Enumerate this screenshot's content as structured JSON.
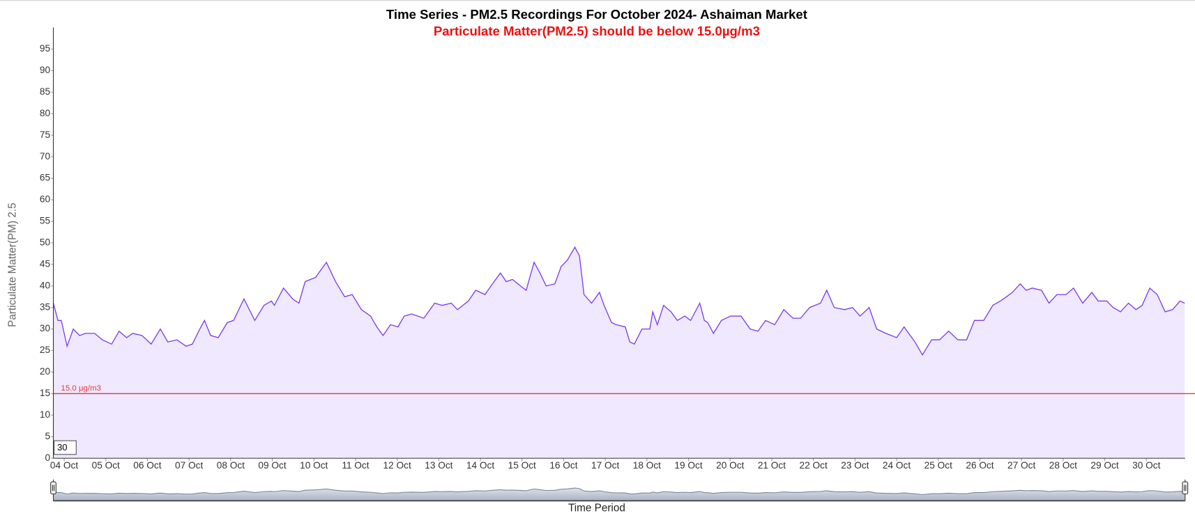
{
  "chart_data": {
    "type": "line",
    "title": "Time Series - PM2.5 Recordings For October 2024- Ashaiman Market",
    "subtitle": "Particulate Matter(PM2.5) should be below 15.0µg/m3",
    "y_label": "Particulate Matter(PM) 2.5",
    "x_label": "Time Period",
    "color": "#7c3aed",
    "fill_color": "#efe8ff",
    "x": [
      3.74,
      3.85,
      3.93,
      4.07,
      4.22,
      4.37,
      4.51,
      4.73,
      4.92,
      5.14,
      5.32,
      5.5,
      5.65,
      5.87,
      6.09,
      6.31,
      6.49,
      6.71,
      6.93,
      7.08,
      7.26,
      7.37,
      7.52,
      7.7,
      7.92,
      8.07,
      8.32,
      8.58,
      8.8,
      8.98,
      9.05,
      9.27,
      9.49,
      9.64,
      9.79,
      10.04,
      10.3,
      10.52,
      10.74,
      10.92,
      11.14,
      11.36,
      11.51,
      11.66,
      11.84,
      12.02,
      12.17,
      12.35,
      12.64,
      12.9,
      13.08,
      13.3,
      13.45,
      13.71,
      13.89,
      14.11,
      14.29,
      14.48,
      14.62,
      14.77,
      15.03,
      15.1,
      15.29,
      15.43,
      15.58,
      15.79,
      15.94,
      16.09,
      16.27,
      16.38,
      16.49,
      16.67,
      16.86,
      16.97,
      17.15,
      17.26,
      17.48,
      17.59,
      17.7,
      17.88,
      18.07,
      18.14,
      18.25,
      18.4,
      18.58,
      18.73,
      18.91,
      19.05,
      19.27,
      19.38,
      19.46,
      19.6,
      19.79,
      20.01,
      20.26,
      20.48,
      20.67,
      20.85,
      21.07,
      21.29,
      21.51,
      21.69,
      21.91,
      22.17,
      22.32,
      22.5,
      22.75,
      22.94,
      23.12,
      23.34,
      23.52,
      23.74,
      24.0,
      24.18,
      24.44,
      24.62,
      24.84,
      25.03,
      25.25,
      25.47,
      25.68,
      25.87,
      26.09,
      26.31,
      26.49,
      26.64,
      26.78,
      26.97,
      27.11,
      27.26,
      27.48,
      27.66,
      27.85,
      28.07,
      28.25,
      28.47,
      28.69,
      28.84,
      29.05,
      29.2,
      29.38,
      29.57,
      29.75,
      29.9,
      30.08,
      30.26,
      30.45,
      30.63,
      30.81,
      30.92
    ],
    "values": [
      36,
      32,
      32,
      26,
      30,
      28.5,
      29,
      29,
      27.5,
      26.5,
      29.5,
      28,
      29,
      28.5,
      26.5,
      30,
      27,
      27.5,
      26,
      26.5,
      30,
      32,
      28.5,
      28,
      31.5,
      32,
      37,
      32,
      35.5,
      36.5,
      35.5,
      39.5,
      37,
      36,
      41,
      42,
      45.5,
      41,
      37.5,
      38,
      34.5,
      33,
      30.5,
      28.5,
      31,
      30.5,
      33,
      33.5,
      32.5,
      36,
      35.5,
      36,
      34.5,
      36.5,
      39,
      38,
      40.5,
      43,
      41,
      41.5,
      39.5,
      39,
      45.5,
      43,
      40,
      40.5,
      44.5,
      46,
      49,
      47,
      38,
      36,
      38.5,
      35.5,
      31.5,
      31,
      30.5,
      27,
      26.5,
      30,
      30,
      34,
      31,
      35.5,
      34,
      32,
      33,
      32,
      36,
      32,
      31.5,
      29,
      32,
      33,
      33,
      30,
      29.5,
      32,
      31,
      34.5,
      32.5,
      32.5,
      35,
      36,
      39,
      35,
      34.5,
      35,
      33,
      35,
      30,
      29,
      28,
      30.5,
      27,
      24,
      27.5,
      27.5,
      29.5,
      27.5,
      27.5,
      32,
      32,
      35.5,
      36.5,
      37.5,
      38.5,
      40.5,
      39,
      39.5,
      39,
      36,
      38,
      38,
      39.5,
      36,
      38.5,
      36.5,
      36.5,
      35,
      34,
      36,
      34.5,
      35.5,
      39.5,
      38,
      34,
      34.5,
      36.5,
      36
    ],
    "xlim": [
      3.74,
      30.93
    ],
    "xticks": [
      {
        "value": 4,
        "label": "04 Oct"
      },
      {
        "value": 5,
        "label": "05 Oct"
      },
      {
        "value": 6,
        "label": "06 Oct"
      },
      {
        "value": 7,
        "label": "07 Oct"
      },
      {
        "value": 8,
        "label": "08 Oct"
      },
      {
        "value": 9,
        "label": "09 Oct"
      },
      {
        "value": 10,
        "label": "10 Oct"
      },
      {
        "value": 11,
        "label": "11 Oct"
      },
      {
        "value": 12,
        "label": "12 Oct"
      },
      {
        "value": 13,
        "label": "13 Oct"
      },
      {
        "value": 14,
        "label": "14 Oct"
      },
      {
        "value": 15,
        "label": "15 Oct"
      },
      {
        "value": 16,
        "label": "16 Oct"
      },
      {
        "value": 17,
        "label": "17 Oct"
      },
      {
        "value": 18,
        "label": "18 Oct"
      },
      {
        "value": 19,
        "label": "19 Oct"
      },
      {
        "value": 20,
        "label": "20 Oct"
      },
      {
        "value": 21,
        "label": "21 Oct"
      },
      {
        "value": 22,
        "label": "22 Oct"
      },
      {
        "value": 23,
        "label": "23 Oct"
      },
      {
        "value": 24,
        "label": "24 Oct"
      },
      {
        "value": 25,
        "label": "25 Oct"
      },
      {
        "value": 26,
        "label": "26 Oct"
      },
      {
        "value": 27,
        "label": "27 Oct"
      },
      {
        "value": 28,
        "label": "28 Oct"
      },
      {
        "value": 29,
        "label": "29 Oct"
      },
      {
        "value": 30,
        "label": "30 Oct"
      }
    ],
    "ylim": [
      0,
      100
    ],
    "yticks": [
      0,
      5,
      10,
      15,
      20,
      25,
      30,
      35,
      40,
      45,
      50,
      55,
      60,
      65,
      70,
      75,
      80,
      85,
      90,
      95
    ],
    "threshold": {
      "value": 15,
      "label": "15.0 µg/m3",
      "color": "#e53935"
    },
    "window_box": "30"
  }
}
